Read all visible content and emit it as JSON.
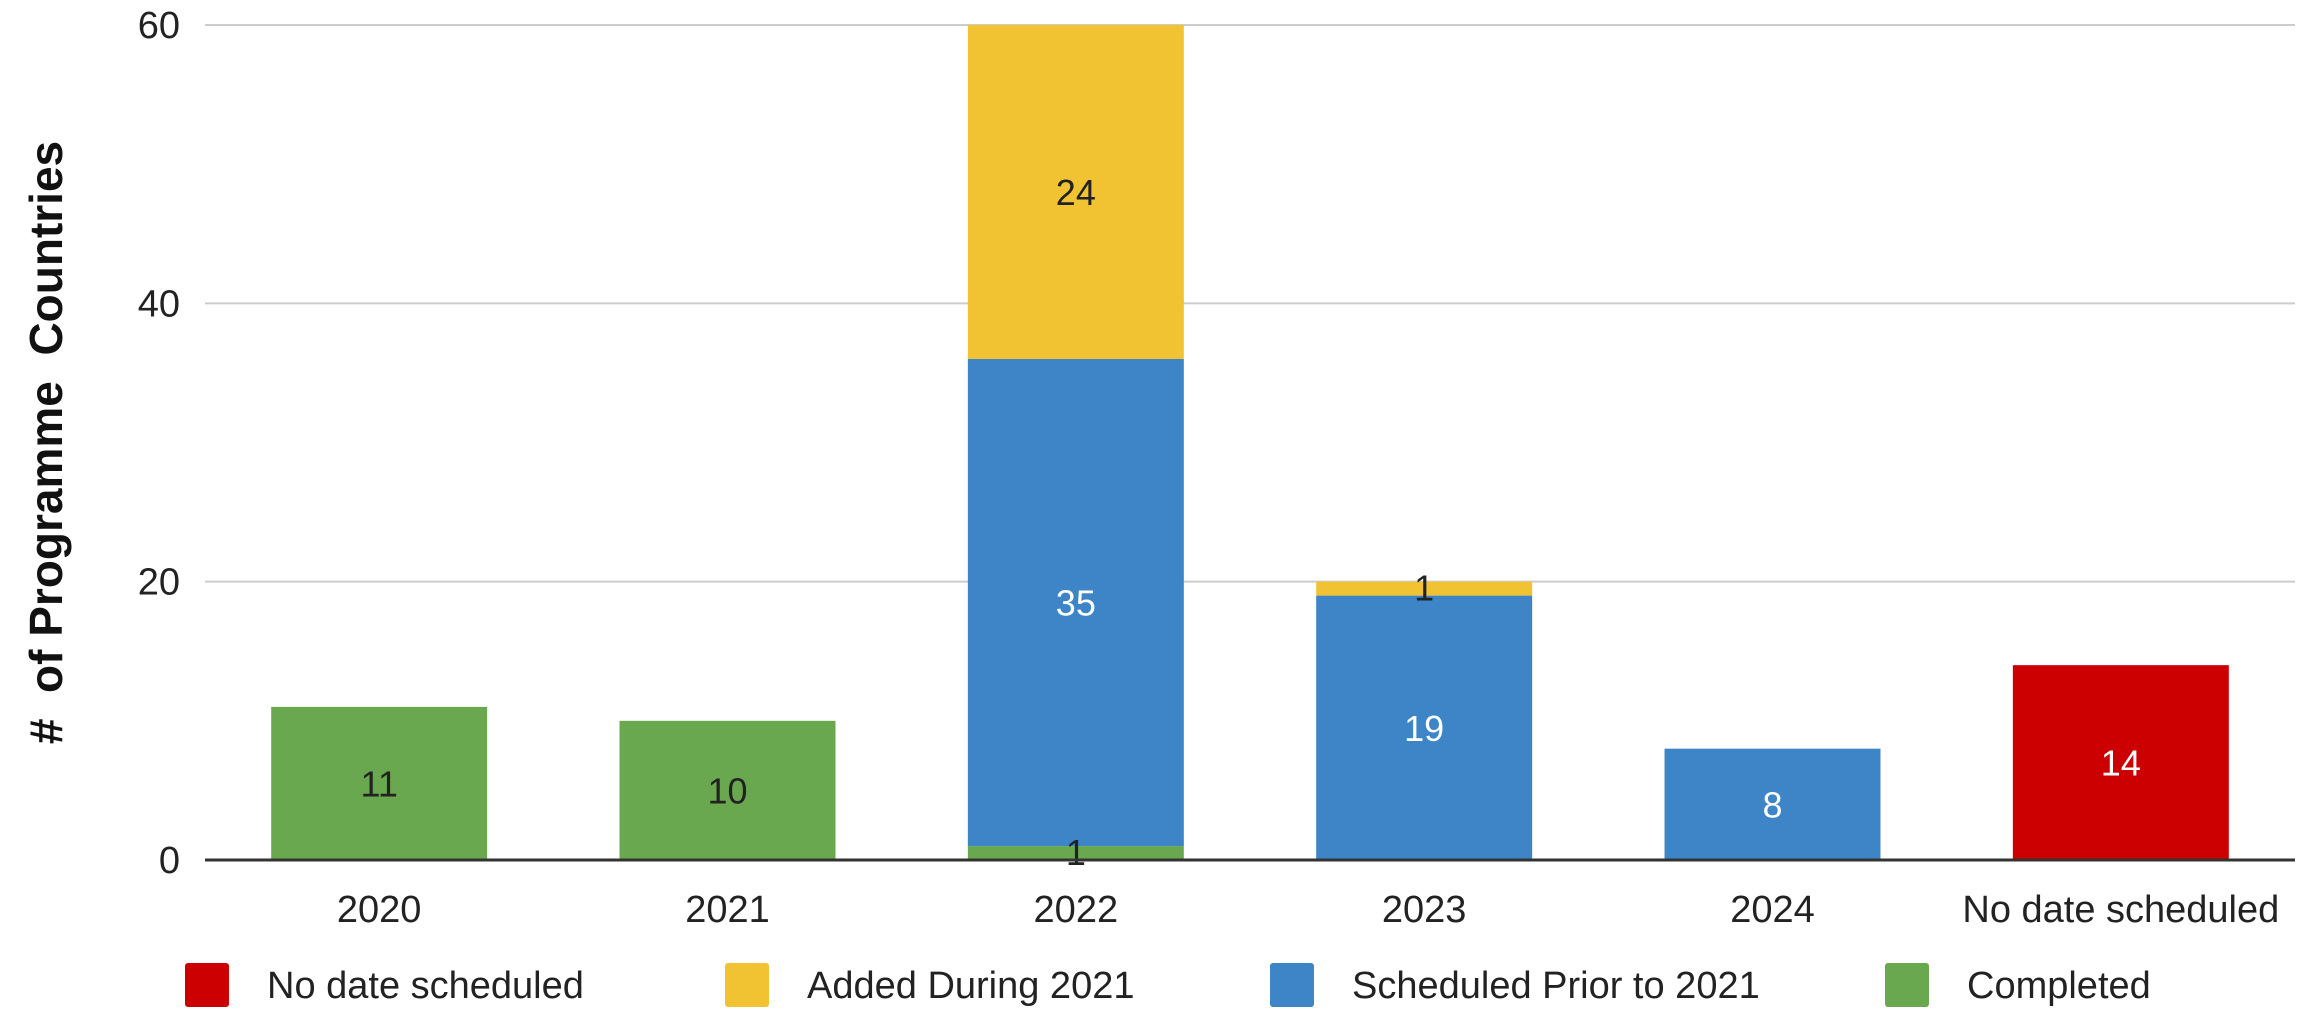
{
  "chart_data": {
    "type": "bar",
    "stacked": true,
    "categories": [
      "2020",
      "2021",
      "2022",
      "2023",
      "2024",
      "No date scheduled"
    ],
    "ylabel": "#  of Programme  Countries",
    "xlabel": "",
    "ylim": [
      0,
      60
    ],
    "yticks": [
      "0",
      "20",
      "40",
      "60"
    ],
    "grid": true,
    "legend_position": "bottom",
    "series": [
      {
        "name": "Completed",
        "color": "#6aa84f",
        "values": [
          11,
          10,
          1,
          0,
          0,
          0
        ]
      },
      {
        "name": "Scheduled Prior to 2021",
        "color": "#3d85c6",
        "values": [
          0,
          0,
          35,
          19,
          8,
          0
        ]
      },
      {
        "name": "Added During 2021",
        "color": "#f1c232",
        "values": [
          0,
          0,
          24,
          1,
          0,
          0
        ]
      },
      {
        "name": "No date scheduled",
        "color": "#cc0000",
        "values": [
          0,
          0,
          0,
          0,
          0,
          14
        ]
      }
    ],
    "legend_order": [
      "No date scheduled",
      "Added During 2021",
      "Scheduled Prior to 2021",
      "Completed"
    ]
  }
}
